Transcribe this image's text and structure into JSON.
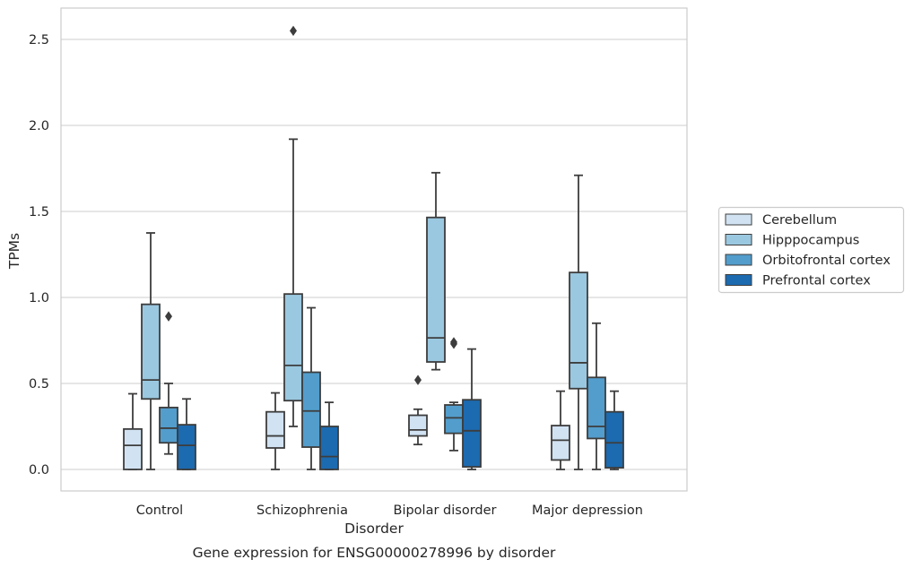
{
  "chart_data": {
    "type": "box",
    "xlabel": "Disorder",
    "ylabel": "TPMs",
    "caption": "Gene expression for ENSG00000278996 by disorder",
    "ylim": [
      -0.12,
      2.68
    ],
    "yticks": [
      0.0,
      0.5,
      1.0,
      1.5,
      2.0,
      2.5
    ],
    "ytick_labels": [
      "0.0",
      "0.5",
      "1.0",
      "1.5",
      "2.0",
      "2.5"
    ],
    "grid": "horizontal",
    "legend_position": "right",
    "categories": [
      "Control",
      "Schizophrenia",
      "Bipolar disorder",
      "Major depression"
    ],
    "series": [
      {
        "name": "Cerebellum",
        "color": "#d1e2f2",
        "boxes": [
          {
            "whislo": 0.0,
            "q1": 0.0,
            "med": 0.14,
            "q3": 0.235,
            "whishi": 0.44,
            "fliers": []
          },
          {
            "whislo": 0.0,
            "q1": 0.125,
            "med": 0.195,
            "q3": 0.335,
            "whishi": 0.445,
            "fliers": []
          },
          {
            "whislo": 0.145,
            "q1": 0.195,
            "med": 0.23,
            "q3": 0.315,
            "whishi": 0.35,
            "fliers": [
              0.52
            ]
          },
          {
            "whislo": 0.0,
            "q1": 0.055,
            "med": 0.17,
            "q3": 0.255,
            "whishi": 0.455,
            "fliers": []
          }
        ]
      },
      {
        "name": "Hipppocampus",
        "color": "#9ac8e0",
        "boxes": [
          {
            "whislo": 0.0,
            "q1": 0.41,
            "med": 0.52,
            "q3": 0.96,
            "whishi": 1.375,
            "fliers": []
          },
          {
            "whislo": 0.25,
            "q1": 0.4,
            "med": 0.605,
            "q3": 1.02,
            "whishi": 1.92,
            "fliers": [
              2.55
            ]
          },
          {
            "whislo": 0.58,
            "q1": 0.625,
            "med": 0.765,
            "q3": 1.465,
            "whishi": 1.725,
            "fliers": []
          },
          {
            "whislo": 0.0,
            "q1": 0.47,
            "med": 0.62,
            "q3": 1.145,
            "whishi": 1.71,
            "fliers": []
          }
        ]
      },
      {
        "name": "Orbitofrontal cortex",
        "color": "#529dcc",
        "boxes": [
          {
            "whislo": 0.09,
            "q1": 0.155,
            "med": 0.24,
            "q3": 0.36,
            "whishi": 0.5,
            "fliers": [
              0.89
            ]
          },
          {
            "whislo": 0.0,
            "q1": 0.13,
            "med": 0.34,
            "q3": 0.565,
            "whishi": 0.94,
            "fliers": []
          },
          {
            "whislo": 0.11,
            "q1": 0.21,
            "med": 0.3,
            "q3": 0.375,
            "whishi": 0.39,
            "fliers": [
              0.73,
              0.74
            ]
          },
          {
            "whislo": 0.0,
            "q1": 0.18,
            "med": 0.25,
            "q3": 0.535,
            "whishi": 0.85,
            "fliers": []
          }
        ]
      },
      {
        "name": "Prefrontal cortex",
        "color": "#1c6aaf",
        "boxes": [
          {
            "whislo": 0.0,
            "q1": 0.0,
            "med": 0.14,
            "q3": 0.26,
            "whishi": 0.41,
            "fliers": []
          },
          {
            "whislo": 0.0,
            "q1": 0.0,
            "med": 0.075,
            "q3": 0.25,
            "whishi": 0.39,
            "fliers": []
          },
          {
            "whislo": 0.0,
            "q1": 0.015,
            "med": 0.225,
            "q3": 0.405,
            "whishi": 0.7,
            "fliers": []
          },
          {
            "whislo": 0.0,
            "q1": 0.01,
            "med": 0.155,
            "q3": 0.335,
            "whishi": 0.455,
            "fliers": []
          }
        ]
      }
    ]
  }
}
